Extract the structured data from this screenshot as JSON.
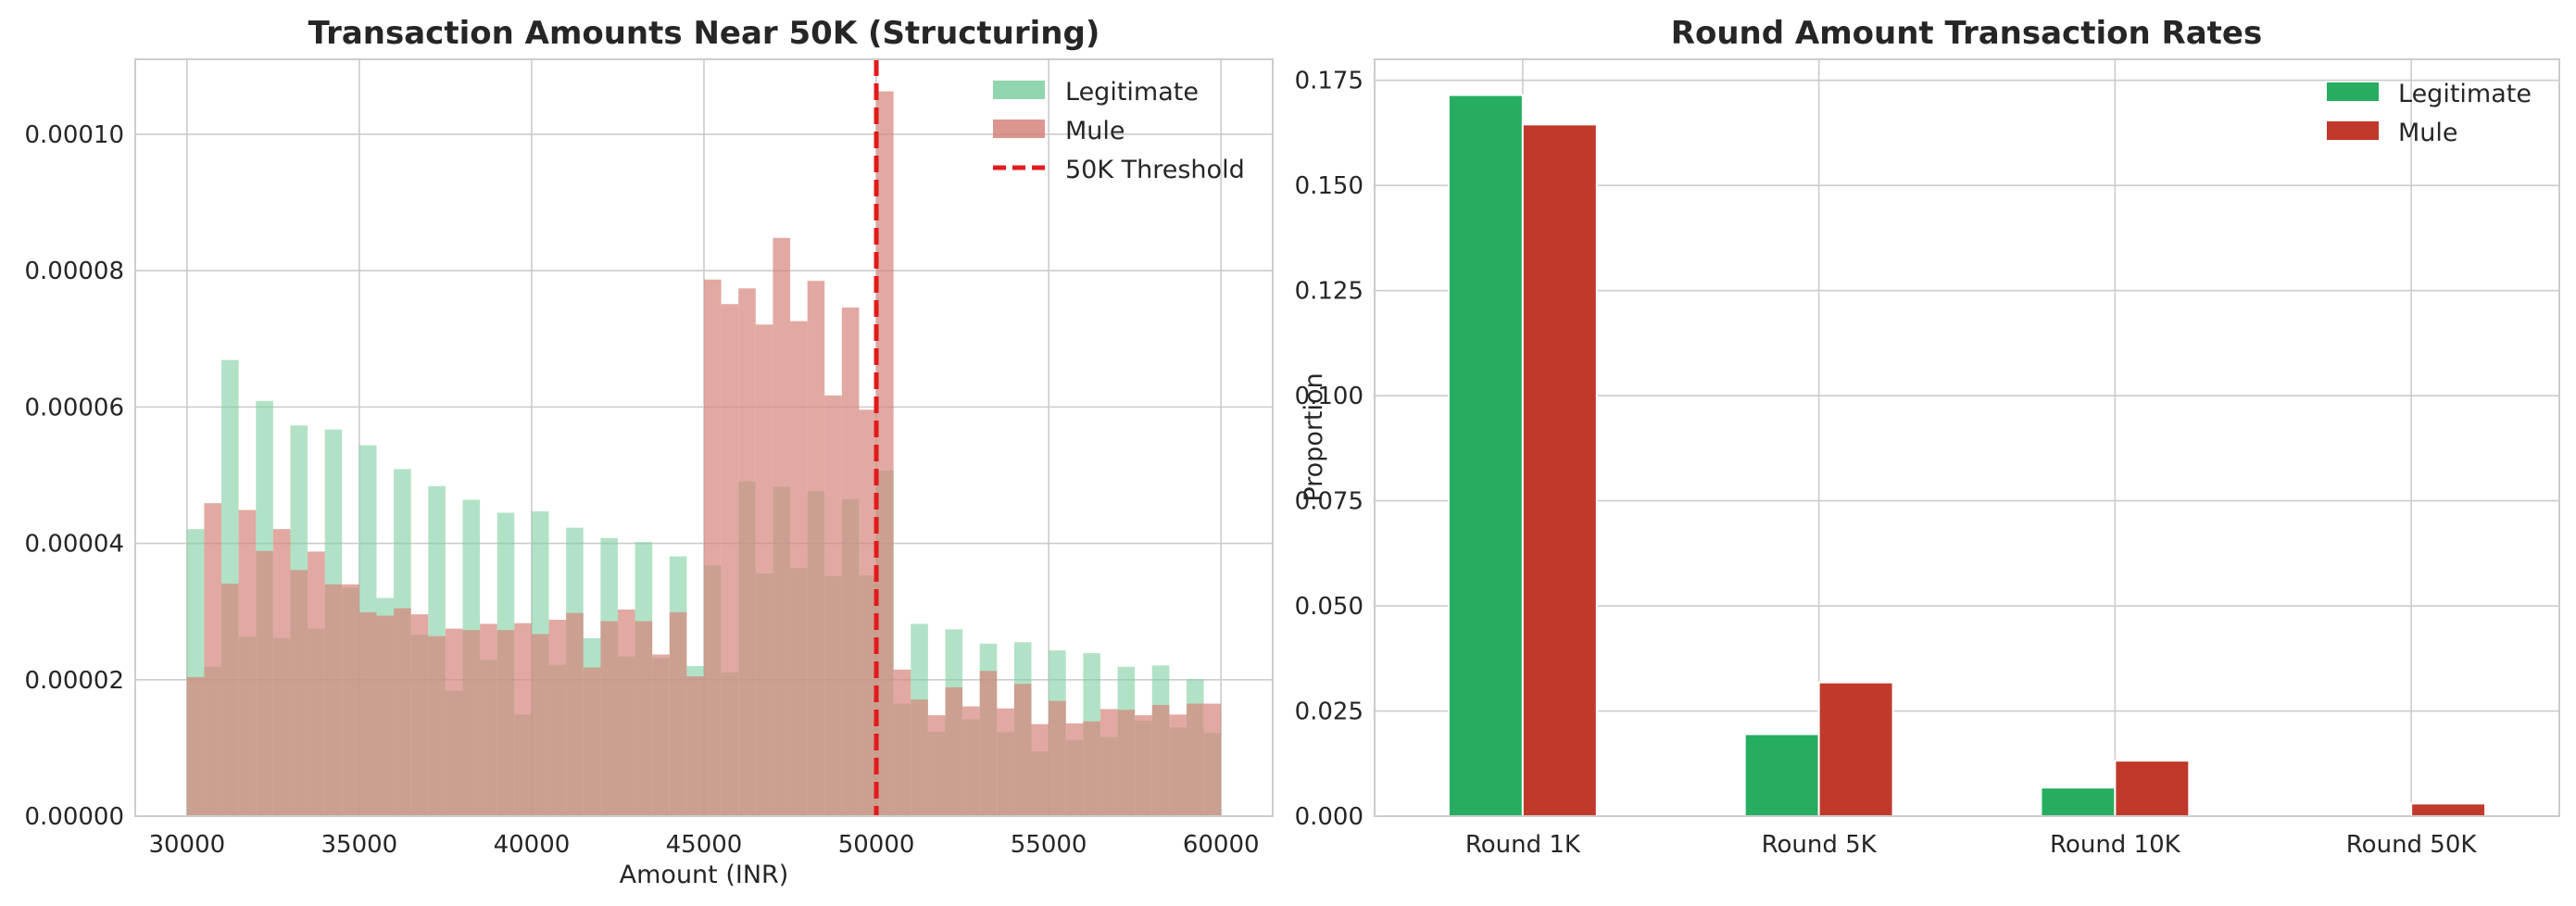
{
  "colors": {
    "legitimate_hist": "#7ecfa0",
    "mule_hist": "#d5847b",
    "legitimate_bar": "#26ad60",
    "mule_bar": "#c0392b",
    "threshold": "#e31a1c"
  },
  "chart_data": [
    {
      "type": "histogram",
      "title": "Transaction Amounts Near 50K (Structuring)",
      "xlabel": "Amount (INR)",
      "ylabel": "",
      "xlim": [
        28500,
        61500
      ],
      "ylim": [
        0,
        0.000111
      ],
      "x_ticks": [
        30000,
        35000,
        40000,
        45000,
        50000,
        55000,
        60000
      ],
      "x_tick_labels": [
        "30000",
        "35000",
        "40000",
        "45000",
        "50000",
        "55000",
        "60000"
      ],
      "y_ticks": [
        0,
        2e-05,
        4e-05,
        6e-05,
        8e-05,
        0.0001
      ],
      "y_tick_labels": [
        "0.00000",
        "0.00002",
        "0.00004",
        "0.00006",
        "0.00008",
        "0.00010"
      ],
      "grid": true,
      "legend_position": "top-right",
      "bin_start": 30000,
      "bin_width": 500,
      "series": [
        {
          "name": "Legitimate",
          "alpha": 0.6,
          "values": [
            4.21e-05,
            2.19e-05,
            6.69e-05,
            2.63e-05,
            6.09e-05,
            2.61e-05,
            5.73e-05,
            2.75e-05,
            5.67e-05,
            3.35e-05,
            5.44e-05,
            3.2e-05,
            5.09e-05,
            2.66e-05,
            4.84e-05,
            1.84e-05,
            4.64e-05,
            2.29e-05,
            4.45e-05,
            1.49e-05,
            4.47e-05,
            2.22e-05,
            4.23e-05,
            2.61e-05,
            4.08e-05,
            2.34e-05,
            4.02e-05,
            2.32e-05,
            3.81e-05,
            2.2e-05,
            3.68e-05,
            2.11e-05,
            4.91e-05,
            3.56e-05,
            4.83e-05,
            3.64e-05,
            4.77e-05,
            3.52e-05,
            4.65e-05,
            3.53e-05,
            5.07e-05,
            1.65e-05,
            2.82e-05,
            1.24e-05,
            2.74e-05,
            1.42e-05,
            2.53e-05,
            1.23e-05,
            2.55e-05,
            9.5e-06,
            2.43e-05,
            1.12e-05,
            2.39e-05,
            1.16e-05,
            2.19e-05,
            1.4e-05,
            2.21e-05,
            1.3e-05,
            2.01e-05,
            1.22e-05
          ]
        },
        {
          "name": "Mule",
          "alpha": 0.7,
          "values": [
            2.04e-05,
            4.59e-05,
            3.41e-05,
            4.49e-05,
            3.89e-05,
            4.21e-05,
            3.61e-05,
            3.88e-05,
            3.4e-05,
            3.4e-05,
            2.99e-05,
            2.94e-05,
            3.05e-05,
            2.96e-05,
            2.64e-05,
            2.75e-05,
            2.73e-05,
            2.82e-05,
            2.73e-05,
            2.83e-05,
            2.67e-05,
            2.88e-05,
            2.98e-05,
            2.18e-05,
            2.86e-05,
            3.03e-05,
            2.86e-05,
            2.37e-05,
            2.99e-05,
            2.05e-05,
            7.87e-05,
            7.51e-05,
            7.74e-05,
            7.21e-05,
            8.48e-05,
            7.26e-05,
            7.85e-05,
            6.17e-05,
            7.46e-05,
            5.96e-05,
            0.0001063,
            2.15e-05,
            1.71e-05,
            1.48e-05,
            1.89e-05,
            1.61e-05,
            2.13e-05,
            1.58e-05,
            1.94e-05,
            1.35e-05,
            1.69e-05,
            1.36e-05,
            1.39e-05,
            1.57e-05,
            1.56e-05,
            1.48e-05,
            1.63e-05,
            1.49e-05,
            1.65e-05,
            1.65e-05
          ]
        }
      ],
      "threshold": {
        "name": "50K Threshold",
        "x": 50000
      }
    },
    {
      "type": "bar",
      "title": "Round Amount Transaction Rates",
      "xlabel": "",
      "ylabel": "Proportion",
      "ylim": [
        0,
        0.18
      ],
      "y_ticks": [
        0,
        0.025,
        0.05,
        0.075,
        0.1,
        0.125,
        0.15,
        0.175
      ],
      "y_tick_labels": [
        "0.000",
        "0.025",
        "0.050",
        "0.075",
        "0.100",
        "0.125",
        "0.150",
        "0.175"
      ],
      "grid": true,
      "legend_position": "top-right",
      "categories": [
        "Round 1K",
        "Round 5K",
        "Round 10K",
        "Round 50K"
      ],
      "series": [
        {
          "name": "Legitimate",
          "values": [
            0.1715,
            0.0195,
            0.0068,
            0.0
          ]
        },
        {
          "name": "Mule",
          "values": [
            0.1645,
            0.0318,
            0.0132,
            0.003
          ]
        }
      ]
    }
  ]
}
